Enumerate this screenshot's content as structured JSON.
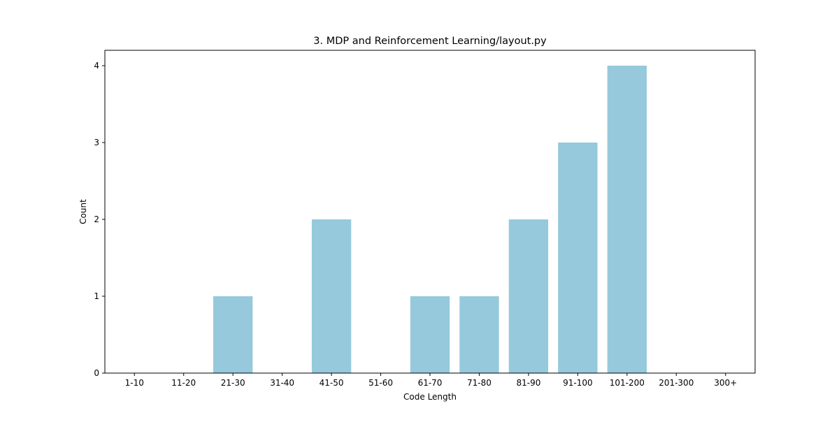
{
  "chart_data": {
    "type": "bar",
    "title": "3. MDP and Reinforcement Learning/layout.py",
    "xlabel": "Code Length",
    "ylabel": "Count",
    "categories": [
      "1-10",
      "11-20",
      "21-30",
      "31-40",
      "41-50",
      "51-60",
      "61-70",
      "71-80",
      "81-90",
      "91-100",
      "101-200",
      "201-300",
      "300+"
    ],
    "values": [
      0,
      0,
      1,
      0,
      2,
      0,
      1,
      1,
      2,
      3,
      4,
      0,
      0
    ],
    "ylim": [
      0,
      4.2
    ],
    "yticks": [
      0,
      1,
      2,
      3,
      4
    ],
    "grid": false,
    "bar_color": "#96c9dc"
  }
}
